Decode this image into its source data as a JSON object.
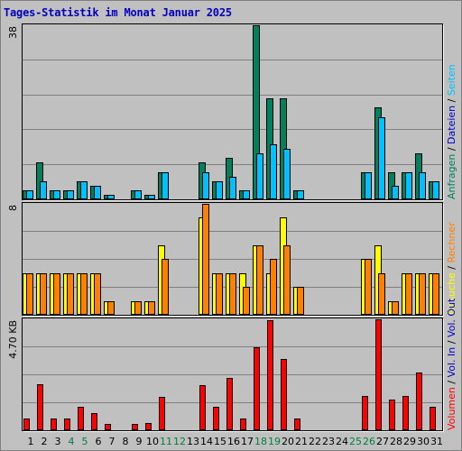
{
  "title": "Tages-Statistik im Monat Januar 2025",
  "colors": {
    "background": "#c0c0c0",
    "pages": "#00805c",
    "files": "#00c0ff",
    "visits": "#ffff00",
    "hosts": "#ff8000",
    "kbytes": "#ff0000",
    "title": "#0000c0",
    "weekend": "#008040",
    "text": "#000000"
  },
  "chart_data": {
    "type": "bar",
    "x": [
      1,
      2,
      3,
      4,
      5,
      6,
      7,
      8,
      9,
      10,
      11,
      12,
      13,
      14,
      15,
      16,
      17,
      18,
      19,
      20,
      21,
      22,
      23,
      24,
      25,
      26,
      27,
      28,
      29,
      30,
      31
    ],
    "weekend_days": [
      4,
      5,
      11,
      12,
      18,
      19,
      25,
      26
    ],
    "panels": [
      {
        "id": "hits",
        "scale_label": "38",
        "ymax": 38,
        "right_label": [
          {
            "text": "Anfragen",
            "color": "#00805c"
          },
          {
            "text": "Dateien",
            "color": "#0000c0"
          },
          {
            "text": "Seiten",
            "color": "#00c0ff"
          }
        ],
        "series": [
          {
            "name": "Anfragen",
            "color": "#00805c",
            "values": [
              2,
              8,
              2,
              2,
              4,
              3,
              1,
              0,
              2,
              1,
              6,
              0,
              0,
              8,
              4,
              9,
              2,
              38,
              22,
              22,
              2,
              0,
              0,
              0,
              0,
              6,
              20,
              6,
              6,
              10,
              4
            ]
          },
          {
            "name": "Dateien",
            "color": "#00c0ff",
            "values": [
              2,
              4,
              2,
              2,
              4,
              3,
              1,
              0,
              2,
              1,
              6,
              0,
              0,
              6,
              4,
              5,
              2,
              10,
              12,
              11,
              2,
              0,
              0,
              0,
              0,
              6,
              18,
              3,
              6,
              6,
              4
            ]
          }
        ]
      },
      {
        "id": "visits",
        "scale_label": "8",
        "ymax": 8,
        "right_label": [
          {
            "text": "Besuche",
            "color": "#ffff00"
          },
          {
            "text": "Rechner",
            "color": "#ff8000"
          }
        ],
        "series": [
          {
            "name": "Besuche",
            "color": "#ffff00",
            "values": [
              3,
              3,
              3,
              3,
              3,
              3,
              1,
              0,
              1,
              1,
              5,
              0,
              0,
              7,
              3,
              3,
              3,
              5,
              3,
              7,
              2,
              0,
              0,
              0,
              0,
              4,
              5,
              1,
              3,
              3,
              3
            ]
          },
          {
            "name": "Rechner",
            "color": "#ff8000",
            "values": [
              3,
              3,
              3,
              3,
              3,
              3,
              1,
              0,
              1,
              1,
              4,
              0,
              0,
              8,
              3,
              3,
              2,
              5,
              4,
              5,
              2,
              0,
              0,
              0,
              0,
              4,
              3,
              1,
              3,
              3,
              3
            ]
          }
        ]
      },
      {
        "id": "kbytes",
        "scale_label": "4.70 KB",
        "ymax": 4.7,
        "right_label": [
          {
            "text": "Volumen",
            "color": "#ff0000"
          },
          {
            "text": "Vol. In",
            "color": "#0000c0"
          },
          {
            "text": "Vol. Out",
            "color": "#0000c0"
          }
        ],
        "series": [
          {
            "name": "Volumen",
            "color": "#ff0000",
            "values": [
              0.5,
              1.95,
              0.5,
              0.5,
              1.0,
              0.72,
              0.25,
              0,
              0.28,
              0.32,
              1.42,
              0,
              0,
              1.9,
              1.0,
              2.2,
              0.5,
              3.5,
              4.65,
              3.0,
              0.5,
              0,
              0,
              0,
              0,
              1.45,
              4.8,
              1.3,
              1.45,
              2.45,
              1.0
            ]
          }
        ]
      }
    ]
  }
}
